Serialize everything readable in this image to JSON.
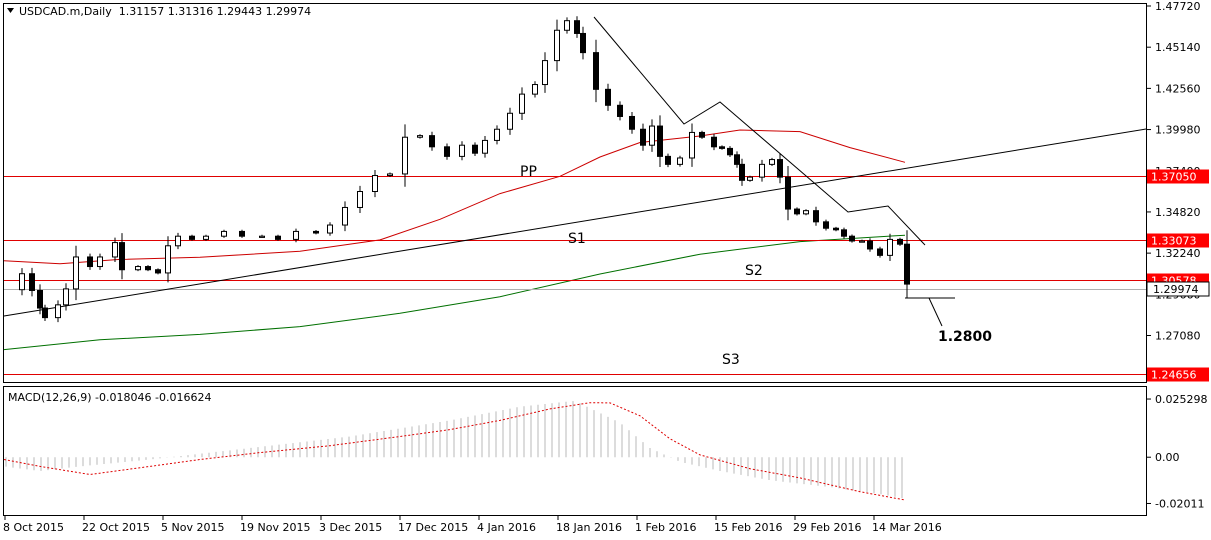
{
  "window": {
    "symbol_info": "USDCAD.m,Daily  1.31157 1.31316 1.29443 1.29974"
  },
  "colors": {
    "background": "#ffffff",
    "candle": "#000000",
    "level_line": "#e00000",
    "level_label_bg": "#ff0000",
    "ma_red": "#cc0000",
    "ma_green": "#007000",
    "macd_hist": "#b8b8b8",
    "macd_signal": "#dd0000"
  },
  "chart_data": [
    {
      "type": "candlestick",
      "name": "price-panel",
      "ylim": [
        1.247,
        1.4772
      ],
      "y_ticks": [
        "1.47720",
        "1.45140",
        "1.42560",
        "1.39980",
        "1.37400",
        "1.34820",
        "1.32240",
        "1.29660",
        "1.27080"
      ],
      "x_ticks": [
        "8 Oct 2015",
        "22 Oct 2015",
        "5 Nov 2015",
        "19 Nov 2015",
        "3 Dec 2015",
        "17 Dec 2015",
        "4 Jan 2016",
        "18 Jan 2016",
        "1 Feb 2016",
        "15 Feb 2016",
        "29 Feb 2016",
        "14 Mar 2016"
      ],
      "last_price_label": "1.29974",
      "levels": [
        {
          "name": "PP",
          "value": 1.3705,
          "label": "1.37050"
        },
        {
          "name": "S1",
          "value": 1.33073,
          "label": "1.33073"
        },
        {
          "name": "S2",
          "value": 1.30578,
          "label": "1.30578"
        },
        {
          "name": "S3",
          "value": 1.24656,
          "label": "1.24656"
        }
      ],
      "target": {
        "label": "1.2800"
      }
    },
    {
      "type": "macd",
      "name": "macd-panel",
      "title": "MACD(12,26,9) -0.018046 -0.016624",
      "y_ticks": [
        "0.025298",
        "0.00",
        "-0.02011"
      ],
      "ylim": [
        -0.02208,
        0.02618
      ]
    }
  ]
}
